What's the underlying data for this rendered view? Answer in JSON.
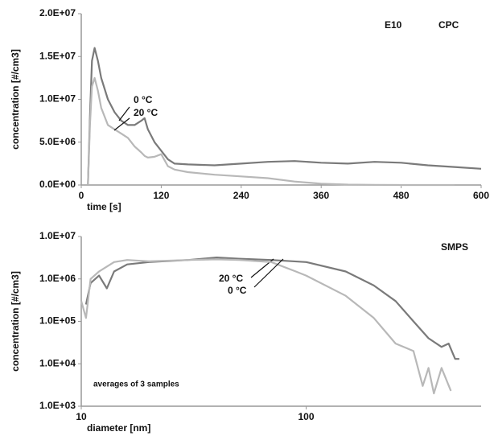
{
  "chart_data": [
    {
      "type": "line",
      "xlabel": "time [s]",
      "ylabel": "concentration [#/cm3]",
      "annotations": [
        {
          "text": "E10"
        },
        {
          "text": "CPC"
        }
      ],
      "xlim": [
        0,
        600
      ],
      "xticks": [
        0,
        120,
        240,
        360,
        480,
        600
      ],
      "ylim": [
        0,
        20000000
      ],
      "yticks": [
        {
          "value": 0,
          "label": "0.0E+00"
        },
        {
          "value": 5000000,
          "label": "5.0E+06"
        },
        {
          "value": 10000000,
          "label": "1.0E+07"
        },
        {
          "value": 15000000,
          "label": "1.5E+07"
        },
        {
          "value": 20000000,
          "label": "2.0E+07"
        }
      ],
      "series": [
        {
          "name": "0 °C",
          "color": "#7a7a7a",
          "x": [
            10,
            13,
            16,
            20,
            25,
            30,
            40,
            50,
            60,
            70,
            80,
            90,
            95,
            100,
            110,
            120,
            130,
            140,
            160,
            200,
            240,
            280,
            320,
            360,
            400,
            440,
            480,
            520,
            560,
            600
          ],
          "values": [
            0,
            8000000,
            14500000,
            16000000,
            14500000,
            12500000,
            10000000,
            8500000,
            7500000,
            7000000,
            7000000,
            7500000,
            7800000,
            6500000,
            5000000,
            4000000,
            3000000,
            2500000,
            2400000,
            2300000,
            2500000,
            2700000,
            2800000,
            2600000,
            2500000,
            2700000,
            2600000,
            2300000,
            2100000,
            1900000
          ]
        },
        {
          "name": "20 °C",
          "color": "#b8b8b8",
          "x": [
            10,
            13,
            16,
            20,
            25,
            30,
            40,
            50,
            60,
            70,
            80,
            90,
            95,
            100,
            110,
            120,
            130,
            140,
            160,
            200,
            240,
            280,
            320,
            360,
            400,
            440,
            480,
            520,
            560,
            600
          ],
          "values": [
            0,
            7000000,
            11500000,
            12500000,
            11000000,
            9000000,
            7000000,
            6500000,
            6000000,
            5500000,
            4500000,
            3800000,
            3400000,
            3200000,
            3300000,
            3600000,
            2200000,
            1800000,
            1500000,
            1200000,
            1000000,
            800000,
            400000,
            150000,
            50000,
            20000,
            0,
            0,
            0,
            null
          ]
        }
      ]
    },
    {
      "type": "line",
      "xlabel": "diameter [nm]",
      "ylabel": "concentration [#/cm3]",
      "annotations": [
        {
          "text": "SMPS"
        },
        {
          "text": "averages of 3 samples"
        }
      ],
      "xscale": "log",
      "yscale": "log",
      "xlim": [
        10,
        600
      ],
      "xticks": [
        10,
        100
      ],
      "ylim": [
        1000,
        10000000
      ],
      "yticks": [
        {
          "value": 1000,
          "label": "1.0E+03"
        },
        {
          "value": 10000,
          "label": "1.0E+04"
        },
        {
          "value": 100000,
          "label": "1.0E+05"
        },
        {
          "value": 1000000,
          "label": "1.0E+06"
        },
        {
          "value": 10000000,
          "label": "1.0E+07"
        }
      ],
      "series": [
        {
          "name": "20 °C",
          "color": "#7a7a7a",
          "x": [
            10.5,
            11,
            12,
            13,
            14,
            16,
            20,
            30,
            40,
            50,
            70,
            100,
            150,
            200,
            250,
            300,
            350,
            400,
            430,
            460,
            480
          ],
          "values": [
            250000,
            800000,
            1200000,
            600000,
            1500000,
            2200000,
            2500000,
            2800000,
            3200000,
            3000000,
            2800000,
            2500000,
            1500000,
            700000,
            300000,
            100000,
            40000,
            25000,
            30000,
            13000,
            13000
          ]
        },
        {
          "name": "0 °C",
          "color": "#b8b8b8",
          "x": [
            10,
            10.5,
            11,
            12,
            14,
            16,
            20,
            30,
            40,
            50,
            70,
            90,
            100,
            150,
            200,
            250,
            300,
            330,
            350,
            370,
            400,
            440
          ],
          "values": [
            300000,
            120000,
            1000000,
            1500000,
            2500000,
            2800000,
            2600000,
            2800000,
            2900000,
            2800000,
            2500000,
            1500000,
            1200000,
            400000,
            120000,
            30000,
            20000,
            3000,
            8000,
            2000,
            8000,
            2300
          ]
        }
      ]
    }
  ]
}
